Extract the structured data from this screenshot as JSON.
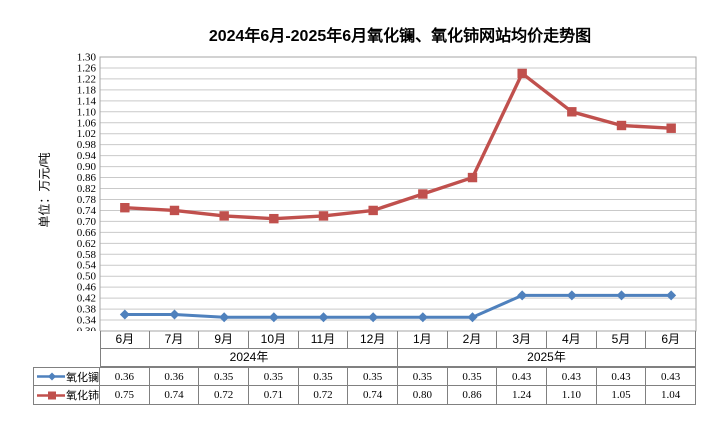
{
  "chart": {
    "title": "2024年6月-2025年6月氧化镧、氧化铈网站均价走势图",
    "y_axis_unit": "单位：万元/吨"
  },
  "chart_data": {
    "type": "line",
    "title": "2024年6月-2025年6月氧化镧、氧化铈网站均价走势图",
    "xlabel": "",
    "ylabel": "单位：万元/吨",
    "ylim": [
      0.3,
      1.3
    ],
    "ytick_step": 0.04,
    "grid": true,
    "legend_position": "bottom-left-table",
    "categories": [
      "6月",
      "7月",
      "9月",
      "10月",
      "11月",
      "12月",
      "1月",
      "2月",
      "3月",
      "4月",
      "5月",
      "6月"
    ],
    "category_groups": [
      {
        "label": "2024年",
        "span": 6
      },
      {
        "label": "2025年",
        "span": 6
      }
    ],
    "series": [
      {
        "name": "氧化镧",
        "color": "#4F81BD",
        "marker": "diamond",
        "values": [
          0.36,
          0.36,
          0.35,
          0.35,
          0.35,
          0.35,
          0.35,
          0.35,
          0.43,
          0.43,
          0.43,
          0.43
        ]
      },
      {
        "name": "氧化铈",
        "color": "#C0504D",
        "marker": "square",
        "values": [
          0.75,
          0.74,
          0.72,
          0.71,
          0.72,
          0.74,
          0.8,
          0.86,
          1.24,
          1.1,
          1.05,
          1.04
        ]
      }
    ]
  },
  "colors": {
    "gridline": "#C9C9C9",
    "plot_border": "#A6A6A6",
    "axis": "#808080",
    "table_border": "#808080",
    "text": "#000000",
    "background": "#FFFFFF"
  }
}
